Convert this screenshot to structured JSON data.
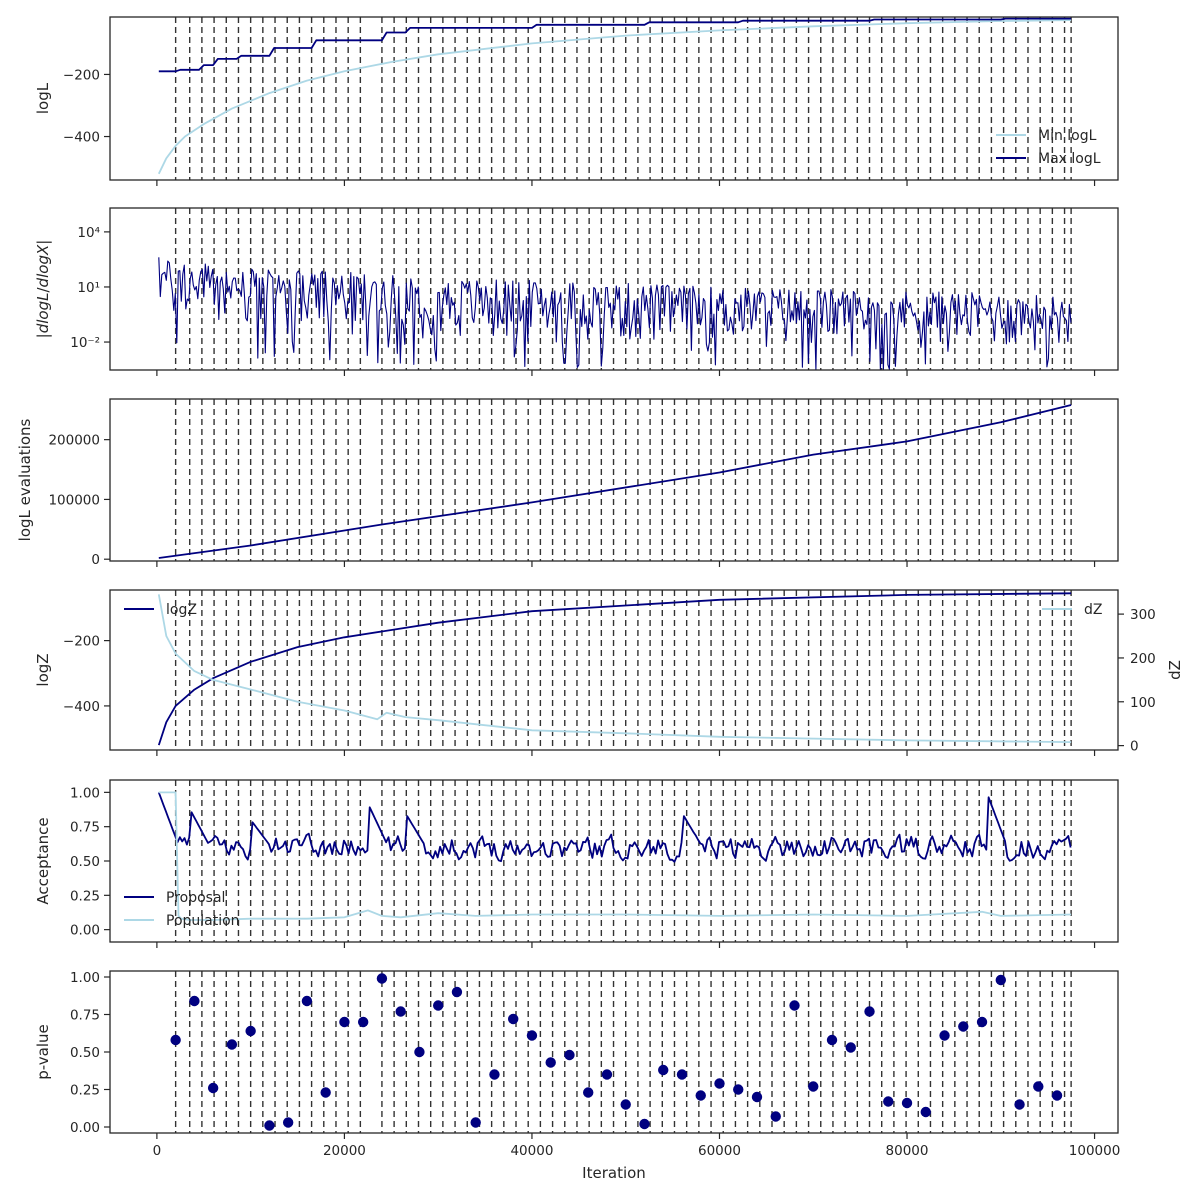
{
  "colors": {
    "navy": "#000080",
    "light": "#add8e6",
    "dashed": "#333333",
    "axis": "#262626"
  },
  "chart_data": [
    {
      "type": "line",
      "panel": "logL",
      "ylabel": "logL",
      "xlim": [
        -5000,
        102500
      ],
      "ylim": [
        -540,
        -15
      ],
      "yticks": [
        -400,
        -200
      ],
      "legend": "lower-right",
      "series": [
        {
          "name": "Min logL",
          "color": "light",
          "x": [
            200,
            1000,
            2000,
            3000,
            5000,
            8000,
            12000,
            16000,
            20000,
            25000,
            30000,
            40000,
            50000,
            60000,
            70000,
            80000,
            90000,
            97500
          ],
          "y": [
            -520,
            -470,
            -430,
            -400,
            -360,
            -310,
            -260,
            -220,
            -190,
            -160,
            -135,
            -100,
            -75,
            -58,
            -45,
            -35,
            -28,
            -25
          ]
        },
        {
          "name": "Max logL",
          "color": "navy",
          "step": true,
          "x": [
            200,
            500,
            2000,
            2500,
            4500,
            5000,
            6000,
            6500,
            8500,
            9000,
            12000,
            12500,
            16500,
            17000,
            24000,
            24500,
            26500,
            27000,
            40000,
            40500,
            52000,
            52500,
            62000,
            62500,
            76000,
            76500,
            90000,
            90500,
            97500
          ],
          "y": [
            -190,
            -190,
            -190,
            -185,
            -185,
            -170,
            -170,
            -150,
            -150,
            -140,
            -140,
            -115,
            -115,
            -90,
            -90,
            -65,
            -65,
            -50,
            -50,
            -40,
            -40,
            -32,
            -32,
            -27,
            -27,
            -23,
            -23,
            -20,
            -20
          ]
        }
      ]
    },
    {
      "type": "line",
      "panel": "dlogL",
      "ylabel": "|dlogL/dlogX|",
      "yscale": "log",
      "xlim": [
        -5000,
        102500
      ],
      "ylim": [
        0.0003,
        200000
      ],
      "yticks": [
        0.01,
        10,
        10000
      ],
      "ytick_labels": [
        "10⁻²",
        "10¹",
        "10⁴"
      ],
      "series": [
        {
          "name": "",
          "color": "navy",
          "noisy": true,
          "x": [
            200,
            300,
            1000,
            10000,
            30000,
            60000,
            97500
          ],
          "upper": [
            50000,
            500,
            300,
            100,
            30,
            10,
            3
          ],
          "lower": [
            1,
            0.1,
            0.02,
            0.005,
            0.002,
            0.001,
            0.001
          ]
        }
      ]
    },
    {
      "type": "line",
      "panel": "evaluations",
      "ylabel": "logL evaluations",
      "xlim": [
        -5000,
        102500
      ],
      "ylim": [
        -3000,
        268000
      ],
      "yticks": [
        0,
        100000,
        200000
      ],
      "series": [
        {
          "name": "",
          "color": "navy",
          "x": [
            200,
            10000,
            20000,
            24000,
            40000,
            60000,
            70000,
            80000,
            90000,
            97500
          ],
          "y": [
            2000,
            23000,
            48000,
            58000,
            95000,
            145000,
            175000,
            197000,
            229000,
            258000
          ]
        }
      ]
    },
    {
      "type": "line",
      "panel": "logZ",
      "ylabel": "logZ",
      "ylabel_right": "dZ",
      "xlim": [
        -5000,
        102500
      ],
      "ylim": [
        -535,
        -45
      ],
      "yticks": [
        -400,
        -200
      ],
      "ylim_right": [
        -10,
        355
      ],
      "yticks_right": [
        0,
        100,
        200,
        300
      ],
      "legend": "top-left",
      "legend_right": "top-right",
      "series": [
        {
          "name": "logZ",
          "color": "navy",
          "axis": "left",
          "x": [
            200,
            1000,
            2000,
            4000,
            6000,
            10000,
            15000,
            20000,
            30000,
            40000,
            60000,
            80000,
            97500
          ],
          "y": [
            -520,
            -450,
            -400,
            -350,
            -315,
            -265,
            -220,
            -190,
            -145,
            -110,
            -75,
            -60,
            -55
          ]
        },
        {
          "name": "dZ",
          "color": "light",
          "axis": "right",
          "x": [
            200,
            1000,
            2000,
            4000,
            6000,
            10000,
            15000,
            20000,
            23500,
            24500,
            26500,
            30000,
            40000,
            50000,
            60000,
            80000,
            97500
          ],
          "y": [
            345,
            250,
            210,
            170,
            150,
            128,
            100,
            80,
            60,
            75,
            65,
            58,
            35,
            28,
            20,
            12,
            8
          ]
        }
      ]
    },
    {
      "type": "line",
      "panel": "acceptance",
      "ylabel": "Acceptance",
      "xlim": [
        -5000,
        102500
      ],
      "ylim": [
        -0.09,
        1.09
      ],
      "yticks": [
        0.0,
        0.25,
        0.5,
        0.75,
        1.0
      ],
      "ytick_labels": [
        "0.00",
        "0.25",
        "0.50",
        "0.75",
        "1.00"
      ],
      "legend": "lower-left",
      "series": [
        {
          "name": "Proposal",
          "color": "navy",
          "noisy": true,
          "mean": 0.6,
          "amp": 0.12,
          "spikes": [
            [
              200,
              1.0
            ],
            [
              3500,
              0.88
            ],
            [
              10000,
              0.8
            ],
            [
              22500,
              0.92
            ],
            [
              26500,
              0.85
            ],
            [
              56000,
              0.85
            ],
            [
              88500,
              1.0
            ]
          ]
        },
        {
          "name": "Population",
          "color": "light",
          "x": [
            200,
            2000,
            2300,
            2600,
            3500,
            6000,
            10000,
            16000,
            20000,
            22500,
            24000,
            26000,
            30000,
            34000,
            40000,
            50000,
            60000,
            70000,
            80000,
            88000,
            90000,
            97500
          ],
          "y": [
            1.0,
            1.0,
            0.1,
            0.08,
            0.07,
            0.07,
            0.08,
            0.08,
            0.09,
            0.14,
            0.1,
            0.09,
            0.12,
            0.1,
            0.11,
            0.11,
            0.1,
            0.11,
            0.1,
            0.13,
            0.1,
            0.11
          ]
        }
      ]
    },
    {
      "type": "scatter",
      "panel": "pvalue",
      "ylabel": "p-value",
      "xlabel": "Iteration",
      "xlim": [
        -5000,
        102500
      ],
      "ylim": [
        -0.04,
        1.04
      ],
      "yticks": [
        0.0,
        0.25,
        0.5,
        0.75,
        1.0
      ],
      "ytick_labels": [
        "0.00",
        "0.25",
        "0.50",
        "0.75",
        "1.00"
      ],
      "xticks": [
        0,
        20000,
        40000,
        60000,
        80000,
        100000
      ],
      "xtick_labels": [
        "0",
        "20000",
        "40000",
        "60000",
        "80000",
        "100000"
      ],
      "series": [
        {
          "name": "",
          "color": "navy",
          "x": [
            2000,
            4000,
            6000,
            8000,
            10000,
            12000,
            14000,
            16000,
            18000,
            20000,
            22000,
            24000,
            26000,
            28000,
            30000,
            32000,
            34000,
            36000,
            38000,
            40000,
            42000,
            44000,
            46000,
            48000,
            50000,
            52000,
            54000,
            56000,
            58000,
            60000,
            62000,
            64000,
            66000,
            68000,
            70000,
            72000,
            74000,
            76000,
            78000,
            80000,
            82000,
            84000,
            86000,
            88000,
            90000,
            92000,
            94000,
            96000
          ],
          "y": [
            0.58,
            0.84,
            0.26,
            0.55,
            0.64,
            0.01,
            0.03,
            0.84,
            0.23,
            0.7,
            0.7,
            0.99,
            0.77,
            0.5,
            0.81,
            0.9,
            0.03,
            0.35,
            0.72,
            0.61,
            0.43,
            0.48,
            0.23,
            0.35,
            0.15,
            0.02,
            0.38,
            0.35,
            0.21,
            0.29,
            0.25,
            0.2,
            0.07,
            0.81,
            0.27,
            0.58,
            0.53,
            0.77,
            0.17,
            0.16,
            0.1,
            0.61,
            0.67,
            0.7,
            0.98,
            0.15,
            0.27,
            0.21
          ]
        }
      ]
    }
  ],
  "dashed_lines_x": [
    2000,
    3500,
    4800,
    6100,
    7400,
    8700,
    10000,
    11300,
    12600,
    13900,
    15200,
    16500,
    17800,
    19100,
    20400,
    21700,
    24000,
    25300,
    26600,
    27900,
    29200,
    30500,
    31800,
    33100,
    34400,
    35700,
    37000,
    38300,
    39600,
    40900,
    42200,
    43500,
    44800,
    46100,
    47400,
    48700,
    50000,
    51300,
    52600,
    53900,
    55200,
    56500,
    57800,
    59100,
    60400,
    61700,
    63000,
    64300,
    65600,
    66900,
    68200,
    69500,
    70800,
    72100,
    73400,
    74700,
    76000,
    77300,
    78600,
    79900,
    81200,
    82500,
    83800,
    85100,
    86400,
    87700,
    89000,
    90300,
    91600,
    92900,
    94200,
    95500,
    96800,
    97500
  ]
}
